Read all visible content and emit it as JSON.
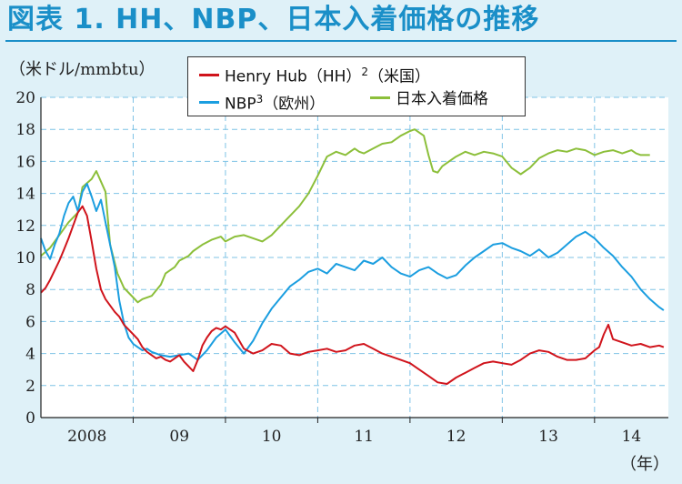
{
  "title": "図表 1. HH、NBP、日本入着価格の推移",
  "unit_label": "（米ドル/mmbtu）",
  "year_unit": "（年）",
  "colors": {
    "hh": "#d0141c",
    "nbp": "#1b9ee0",
    "japan": "#8cbf3a",
    "title": "#1a8fc8"
  },
  "legend": [
    {
      "key": "hh",
      "label": "Henry Hub（HH）",
      "sup": "2",
      "suffix": "（米国）"
    },
    {
      "key": "nbp",
      "label": "NBP",
      "sup": "3",
      "suffix": "（欧州）"
    },
    {
      "key": "japan",
      "label": "日本入着価格",
      "sup": "",
      "suffix": ""
    }
  ],
  "chart_data": {
    "type": "line",
    "xlabel": "（年）",
    "ylabel": "（米ドル/mmbtu）",
    "ylim": [
      0,
      20
    ],
    "xlim": [
      2008.0,
      2014.8
    ],
    "y_ticks": [
      "0",
      "2",
      "4",
      "6",
      "8",
      "10",
      "12",
      "14",
      "16",
      "18",
      "20"
    ],
    "x_ticks": [
      {
        "label": "2008",
        "x": 2008.5
      },
      {
        "label": "09",
        "x": 2009.5
      },
      {
        "label": "10",
        "x": 2010.5
      },
      {
        "label": "11",
        "x": 2011.5
      },
      {
        "label": "12",
        "x": 2012.5
      },
      {
        "label": "13",
        "x": 2013.5
      },
      {
        "label": "14",
        "x": 2014.4
      }
    ],
    "grid": true,
    "series": [
      {
        "name": "Henry Hub（HH）（米国）",
        "key": "hh",
        "x": [
          2008.0,
          2008.05,
          2008.1,
          2008.15,
          2008.2,
          2008.25,
          2008.3,
          2008.35,
          2008.4,
          2008.45,
          2008.5,
          2008.55,
          2008.6,
          2008.65,
          2008.7,
          2008.75,
          2008.8,
          2008.85,
          2008.9,
          2008.95,
          2009.0,
          2009.05,
          2009.1,
          2009.15,
          2009.2,
          2009.25,
          2009.3,
          2009.35,
          2009.4,
          2009.45,
          2009.5,
          2009.55,
          2009.6,
          2009.65,
          2009.7,
          2009.75,
          2009.8,
          2009.85,
          2009.9,
          2009.95,
          2010.0,
          2010.1,
          2010.2,
          2010.3,
          2010.4,
          2010.5,
          2010.6,
          2010.7,
          2010.8,
          2010.9,
          2011.0,
          2011.1,
          2011.2,
          2011.3,
          2011.4,
          2011.5,
          2011.6,
          2011.7,
          2011.8,
          2011.9,
          2012.0,
          2012.1,
          2012.2,
          2012.3,
          2012.4,
          2012.5,
          2012.6,
          2012.7,
          2012.8,
          2012.9,
          2013.0,
          2013.1,
          2013.2,
          2013.3,
          2013.4,
          2013.5,
          2013.6,
          2013.7,
          2013.8,
          2013.9,
          2014.0,
          2014.05,
          2014.1,
          2014.15,
          2014.2,
          2014.3,
          2014.4,
          2014.5,
          2014.6,
          2014.7,
          2014.75
        ],
        "values": [
          7.8,
          8.1,
          8.6,
          9.2,
          9.8,
          10.5,
          11.2,
          12.0,
          12.8,
          13.2,
          12.6,
          11.0,
          9.3,
          8.0,
          7.4,
          7.0,
          6.6,
          6.3,
          5.8,
          5.5,
          5.2,
          4.9,
          4.4,
          4.1,
          3.9,
          3.7,
          3.8,
          3.6,
          3.5,
          3.7,
          3.9,
          3.5,
          3.2,
          2.9,
          3.6,
          4.5,
          5.0,
          5.4,
          5.6,
          5.5,
          5.7,
          5.3,
          4.3,
          4.0,
          4.2,
          4.6,
          4.5,
          4.0,
          3.9,
          4.1,
          4.2,
          4.3,
          4.1,
          4.2,
          4.5,
          4.6,
          4.3,
          4.0,
          3.8,
          3.6,
          3.4,
          3.0,
          2.6,
          2.2,
          2.1,
          2.5,
          2.8,
          3.1,
          3.4,
          3.5,
          3.4,
          3.3,
          3.6,
          4.0,
          4.2,
          4.1,
          3.8,
          3.6,
          3.6,
          3.7,
          4.2,
          4.4,
          5.2,
          5.8,
          4.9,
          4.7,
          4.5,
          4.6,
          4.4,
          4.5,
          4.4
        ]
      },
      {
        "name": "NBP（欧州）",
        "key": "nbp",
        "x": [
          2008.0,
          2008.05,
          2008.1,
          2008.15,
          2008.2,
          2008.25,
          2008.3,
          2008.35,
          2008.4,
          2008.45,
          2008.5,
          2008.55,
          2008.6,
          2008.65,
          2008.7,
          2008.75,
          2008.8,
          2008.85,
          2008.9,
          2008.95,
          2009.0,
          2009.05,
          2009.1,
          2009.15,
          2009.2,
          2009.3,
          2009.4,
          2009.5,
          2009.6,
          2009.7,
          2009.8,
          2009.9,
          2010.0,
          2010.1,
          2010.2,
          2010.3,
          2010.4,
          2010.5,
          2010.6,
          2010.7,
          2010.8,
          2010.9,
          2011.0,
          2011.1,
          2011.2,
          2011.3,
          2011.4,
          2011.5,
          2011.6,
          2011.7,
          2011.8,
          2011.9,
          2012.0,
          2012.1,
          2012.2,
          2012.3,
          2012.4,
          2012.5,
          2012.6,
          2012.7,
          2012.8,
          2012.9,
          2013.0,
          2013.1,
          2013.2,
          2013.3,
          2013.4,
          2013.5,
          2013.6,
          2013.7,
          2013.8,
          2013.9,
          2014.0,
          2014.1,
          2014.2,
          2014.3,
          2014.4,
          2014.5,
          2014.6,
          2014.7,
          2014.75
        ],
        "values": [
          11.2,
          10.4,
          9.9,
          10.8,
          11.5,
          12.6,
          13.4,
          13.8,
          12.9,
          14.1,
          14.6,
          13.8,
          12.9,
          13.6,
          12.2,
          10.8,
          9.4,
          7.3,
          5.9,
          5.0,
          4.6,
          4.4,
          4.2,
          4.3,
          4.1,
          3.9,
          3.8,
          3.9,
          4.0,
          3.6,
          4.2,
          5.0,
          5.5,
          4.7,
          4.0,
          4.8,
          5.9,
          6.8,
          7.5,
          8.2,
          8.6,
          9.1,
          9.3,
          9.0,
          9.6,
          9.4,
          9.2,
          9.8,
          9.6,
          10.0,
          9.4,
          9.0,
          8.8,
          9.2,
          9.4,
          9.0,
          8.7,
          8.9,
          9.5,
          10.0,
          10.4,
          10.8,
          10.9,
          10.6,
          10.4,
          10.1,
          10.5,
          10.0,
          10.3,
          10.8,
          11.3,
          11.6,
          11.2,
          10.6,
          10.1,
          9.4,
          8.8,
          8.0,
          7.4,
          6.9,
          6.7
        ]
      },
      {
        "name": "日本入着価格",
        "key": "japan",
        "x": [
          2008.0,
          2008.1,
          2008.15,
          2008.25,
          2008.3,
          2008.4,
          2008.45,
          2008.55,
          2008.6,
          2008.7,
          2008.75,
          2008.83,
          2008.9,
          2009.0,
          2009.05,
          2009.1,
          2009.2,
          2009.3,
          2009.35,
          2009.45,
          2009.5,
          2009.6,
          2009.65,
          2009.75,
          2009.85,
          2009.95,
          2010.0,
          2010.1,
          2010.2,
          2010.3,
          2010.4,
          2010.5,
          2010.6,
          2010.7,
          2010.8,
          2010.9,
          2011.0,
          2011.1,
          2011.2,
          2011.3,
          2011.4,
          2011.45,
          2011.5,
          2011.6,
          2011.7,
          2011.8,
          2011.9,
          2012.0,
          2012.05,
          2012.1,
          2012.15,
          2012.2,
          2012.25,
          2012.3,
          2012.35,
          2012.45,
          2012.5,
          2012.6,
          2012.7,
          2012.8,
          2012.9,
          2013.0,
          2013.1,
          2013.2,
          2013.3,
          2013.4,
          2013.5,
          2013.6,
          2013.7,
          2013.8,
          2013.9,
          2014.0,
          2014.1,
          2014.2,
          2014.3,
          2014.4,
          2014.45,
          2014.5,
          2014.6
        ],
        "values": [
          10.1,
          10.6,
          11.0,
          11.8,
          12.2,
          12.8,
          14.4,
          14.9,
          15.4,
          14.1,
          10.8,
          9.0,
          8.1,
          7.5,
          7.2,
          7.4,
          7.6,
          8.3,
          9.0,
          9.4,
          9.8,
          10.1,
          10.4,
          10.8,
          11.1,
          11.3,
          11.0,
          11.3,
          11.4,
          11.2,
          11.0,
          11.4,
          12.0,
          12.6,
          13.2,
          14.0,
          15.1,
          16.3,
          16.6,
          16.4,
          16.8,
          16.6,
          16.5,
          16.8,
          17.1,
          17.2,
          17.6,
          17.9,
          18.0,
          17.8,
          17.6,
          16.4,
          15.4,
          15.3,
          15.7,
          16.1,
          16.3,
          16.6,
          16.4,
          16.6,
          16.5,
          16.3,
          15.6,
          15.2,
          15.6,
          16.2,
          16.5,
          16.7,
          16.6,
          16.8,
          16.7,
          16.4,
          16.6,
          16.7,
          16.5,
          16.7,
          16.5,
          16.4,
          16.4
        ]
      }
    ]
  }
}
